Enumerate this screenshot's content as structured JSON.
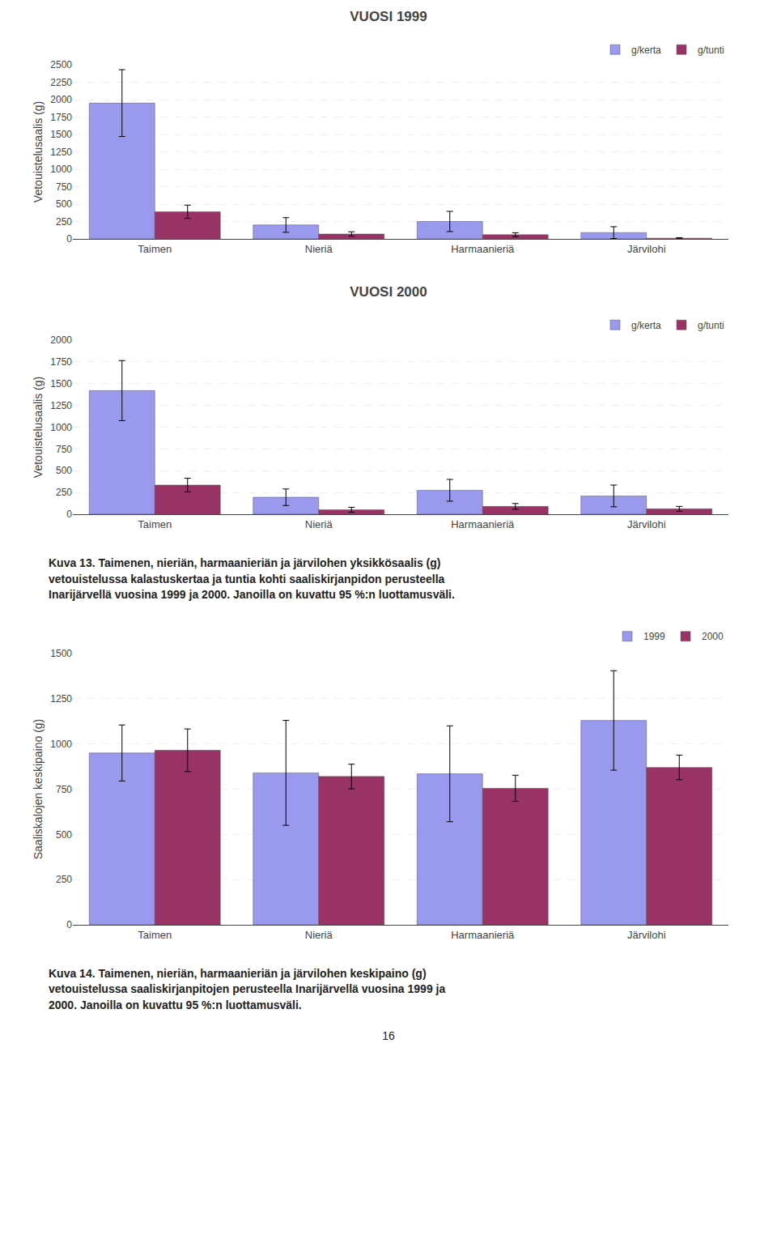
{
  "chart_data": [
    {
      "type": "bar",
      "title": "VUOSI 1999",
      "y_label": "Vetouistelusaalis (g)",
      "categories": [
        "Taimen",
        "Nieriä",
        "Harmaanieriä",
        "Järvilohi"
      ],
      "series": [
        {
          "name": "g/kerta",
          "color": "#9999ee",
          "values": [
            1950,
            200,
            250,
            90
          ],
          "errors": [
            480,
            105,
            145,
            85
          ]
        },
        {
          "name": "g/tunti",
          "color": "#993366",
          "values": [
            390,
            70,
            60,
            10
          ],
          "errors": [
            95,
            32,
            28,
            8
          ]
        }
      ],
      "ylim": [
        0,
        2500
      ],
      "yticks": [
        0,
        250,
        500,
        750,
        1000,
        1250,
        1500,
        1750,
        2000,
        2250,
        2500
      ],
      "grid": true,
      "legend": "upper right"
    },
    {
      "type": "bar",
      "title": "VUOSI 2000",
      "y_label": "Vetouistelusaalis (g)",
      "categories": [
        "Taimen",
        "Nieriä",
        "Harmaanieriä",
        "Järvilohi"
      ],
      "series": [
        {
          "name": "g/kerta",
          "color": "#9999ee",
          "values": [
            1420,
            195,
            275,
            210
          ],
          "errors": [
            345,
            95,
            125,
            125
          ]
        },
        {
          "name": "g/tunti",
          "color": "#993366",
          "values": [
            335,
            52,
            90,
            62
          ],
          "errors": [
            78,
            28,
            33,
            28
          ]
        }
      ],
      "ylim": [
        0,
        2000
      ],
      "yticks": [
        0,
        250,
        500,
        750,
        1000,
        1250,
        1500,
        1750,
        2000
      ],
      "grid": true,
      "legend": "upper right",
      "annotations": [
        "Kuva 13. Taimenen, nieriän, harmaanieriän ja järvilohen yksikkösaalis (g)\nvetouistelussa kalastuskertaa ja tuntia kohti saaliskirjanpidon perusteella\nInarijärvellä vuosina 1999 ja 2000. Janoilla on kuvattu 95 %:n luottamusväli."
      ]
    },
    {
      "type": "bar",
      "y_label": "Saaliskalojen keskipaino (g)",
      "categories": [
        "Taimen",
        "Nieriä",
        "Harmaanieriä",
        "Järvilohi"
      ],
      "series": [
        {
          "name": "1999",
          "color": "#9999ee",
          "values": [
            950,
            840,
            835,
            1130
          ],
          "errors": [
            155,
            290,
            265,
            275
          ]
        },
        {
          "name": "2000",
          "color": "#993366",
          "values": [
            965,
            820,
            755,
            870
          ],
          "errors": [
            118,
            68,
            72,
            68
          ]
        }
      ],
      "ylim": [
        0,
        1500
      ],
      "yticks": [
        0,
        250,
        500,
        750,
        1000,
        1250,
        1500
      ],
      "grid": true,
      "legend": "upper right",
      "annotations": [
        "Kuva 14. Taimenen, nieriän, harmaanieriän ja järvilohen keskipaino (g)\nvetouistelussa saaliskirjanpitojen perusteella Inarijärvellä vuosina 1999 ja\n2000. Janoilla on kuvattu 95 %:n luottamusväli.",
        "16"
      ]
    }
  ]
}
